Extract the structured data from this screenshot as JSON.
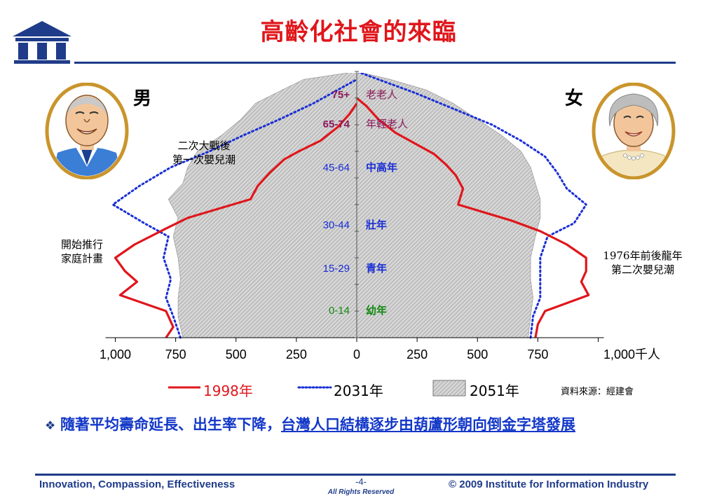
{
  "title": "高齡化社會的來臨",
  "gender": {
    "male": "男",
    "female": "女"
  },
  "annotations": {
    "baby_boom_1": [
      "二次大戰後",
      "第一次嬰兒潮"
    ],
    "family_planning": [
      "開始推行",
      "家庭計畫"
    ],
    "baby_boom_2": [
      "1976年前後龍年",
      "第二次嬰兒潮"
    ]
  },
  "legend": {
    "s1998": "1998年",
    "s2031": "2031年",
    "s2051": "2051年"
  },
  "source": "資料來源：經建會",
  "conclusion": {
    "plain": "隨著平均壽命延長、出生率下降，",
    "underlined": "台灣人口結構逐步由葫蘆形朝向倒金字塔發展"
  },
  "footer": {
    "left": "Innovation, Compassion, Effectiveness",
    "page": "-4-",
    "rights": "All Rights Reserved",
    "right": "2009 Institute for Information Industry"
  },
  "colors": {
    "title": "#e0161b",
    "navy": "#1f3c8a",
    "s1998": "#e0161b",
    "s2031": "#1a2fd6",
    "s2051": "#c8c8c8"
  },
  "chart_data": {
    "type": "area",
    "orientation": "population-pyramid",
    "unit": "千人",
    "age_groups": [
      {
        "label": "75+",
        "name": "老老人",
        "color": "#8b1a5a"
      },
      {
        "label": "65-74",
        "name": "年輕老人",
        "color": "#8b1a5a"
      },
      {
        "label": "45-64",
        "name": "中高年",
        "color": "#1a2fd6"
      },
      {
        "label": "30-44",
        "name": "壯年",
        "color": "#1a2fd6"
      },
      {
        "label": "15-29",
        "name": "青年",
        "color": "#1a2fd6"
      },
      {
        "label": "0-14",
        "name": "幼年",
        "color": "#118a11"
      }
    ],
    "x_ticks": {
      "labels": [
        "1,000",
        "750",
        "500",
        "250",
        "0",
        "250",
        "500",
        "750",
        "1,000千人"
      ],
      "values": [
        -1000,
        -750,
        -500,
        -250,
        0,
        250,
        500,
        750,
        1000
      ]
    },
    "xlim": [
      -1000,
      1000
    ],
    "age_ticks": [
      0,
      10,
      20,
      30,
      40,
      50,
      60,
      70,
      80,
      90,
      100
    ],
    "ylim": [
      0,
      100
    ],
    "series": [
      {
        "name": "1998年",
        "style": "solid",
        "male": [
          [
            0,
            790
          ],
          [
            4,
            760
          ],
          [
            10,
            790
          ],
          [
            16,
            980
          ],
          [
            21,
            910
          ],
          [
            25,
            960
          ],
          [
            30,
            1000
          ],
          [
            35,
            920
          ],
          [
            41,
            790
          ],
          [
            45,
            700
          ],
          [
            52,
            440
          ],
          [
            57,
            410
          ],
          [
            62,
            360
          ],
          [
            67,
            300
          ],
          [
            70,
            240
          ],
          [
            74,
            150
          ],
          [
            79,
            80
          ],
          [
            84,
            30
          ],
          [
            88,
            0
          ]
        ],
        "female": [
          [
            0,
            740
          ],
          [
            5,
            750
          ],
          [
            10,
            780
          ],
          [
            16,
            960
          ],
          [
            21,
            930
          ],
          [
            25,
            950
          ],
          [
            30,
            950
          ],
          [
            35,
            870
          ],
          [
            40,
            760
          ],
          [
            44,
            640
          ],
          [
            50,
            420
          ],
          [
            56,
            440
          ],
          [
            61,
            410
          ],
          [
            65,
            370
          ],
          [
            69,
            320
          ],
          [
            73,
            240
          ],
          [
            77,
            160
          ],
          [
            82,
            90
          ],
          [
            87,
            40
          ],
          [
            90,
            0
          ]
        ]
      },
      {
        "name": "2031年",
        "style": "dotted",
        "male": [
          [
            0,
            730
          ],
          [
            8,
            760
          ],
          [
            15,
            790
          ],
          [
            22,
            770
          ],
          [
            30,
            800
          ],
          [
            38,
            780
          ],
          [
            43,
            880
          ],
          [
            50,
            1010
          ],
          [
            57,
            900
          ],
          [
            64,
            770
          ],
          [
            70,
            610
          ],
          [
            76,
            470
          ],
          [
            82,
            320
          ],
          [
            88,
            180
          ],
          [
            93,
            80
          ],
          [
            97,
            0
          ]
        ],
        "female": [
          [
            0,
            720
          ],
          [
            8,
            730
          ],
          [
            15,
            760
          ],
          [
            22,
            760
          ],
          [
            30,
            760
          ],
          [
            38,
            790
          ],
          [
            43,
            900
          ],
          [
            50,
            950
          ],
          [
            56,
            870
          ],
          [
            62,
            830
          ],
          [
            68,
            780
          ],
          [
            74,
            680
          ],
          [
            80,
            560
          ],
          [
            86,
            400
          ],
          [
            92,
            240
          ],
          [
            97,
            90
          ],
          [
            100,
            0
          ]
        ]
      },
      {
        "name": "2051年",
        "style": "hatched",
        "male": [
          [
            0,
            720
          ],
          [
            8,
            740
          ],
          [
            15,
            740
          ],
          [
            22,
            730
          ],
          [
            30,
            740
          ],
          [
            38,
            760
          ],
          [
            45,
            740
          ],
          [
            52,
            780
          ],
          [
            58,
            720
          ],
          [
            64,
            700
          ],
          [
            70,
            660
          ],
          [
            76,
            560
          ],
          [
            82,
            480
          ],
          [
            88,
            420
          ],
          [
            93,
            310
          ],
          [
            97,
            220
          ],
          [
            100,
            0
          ]
        ],
        "female": [
          [
            0,
            710
          ],
          [
            8,
            720
          ],
          [
            15,
            730
          ],
          [
            22,
            720
          ],
          [
            30,
            720
          ],
          [
            38,
            740
          ],
          [
            45,
            760
          ],
          [
            52,
            760
          ],
          [
            58,
            740
          ],
          [
            64,
            720
          ],
          [
            70,
            680
          ],
          [
            76,
            600
          ],
          [
            82,
            500
          ],
          [
            88,
            400
          ],
          [
            93,
            290
          ],
          [
            97,
            140
          ],
          [
            100,
            0
          ]
        ]
      }
    ]
  }
}
